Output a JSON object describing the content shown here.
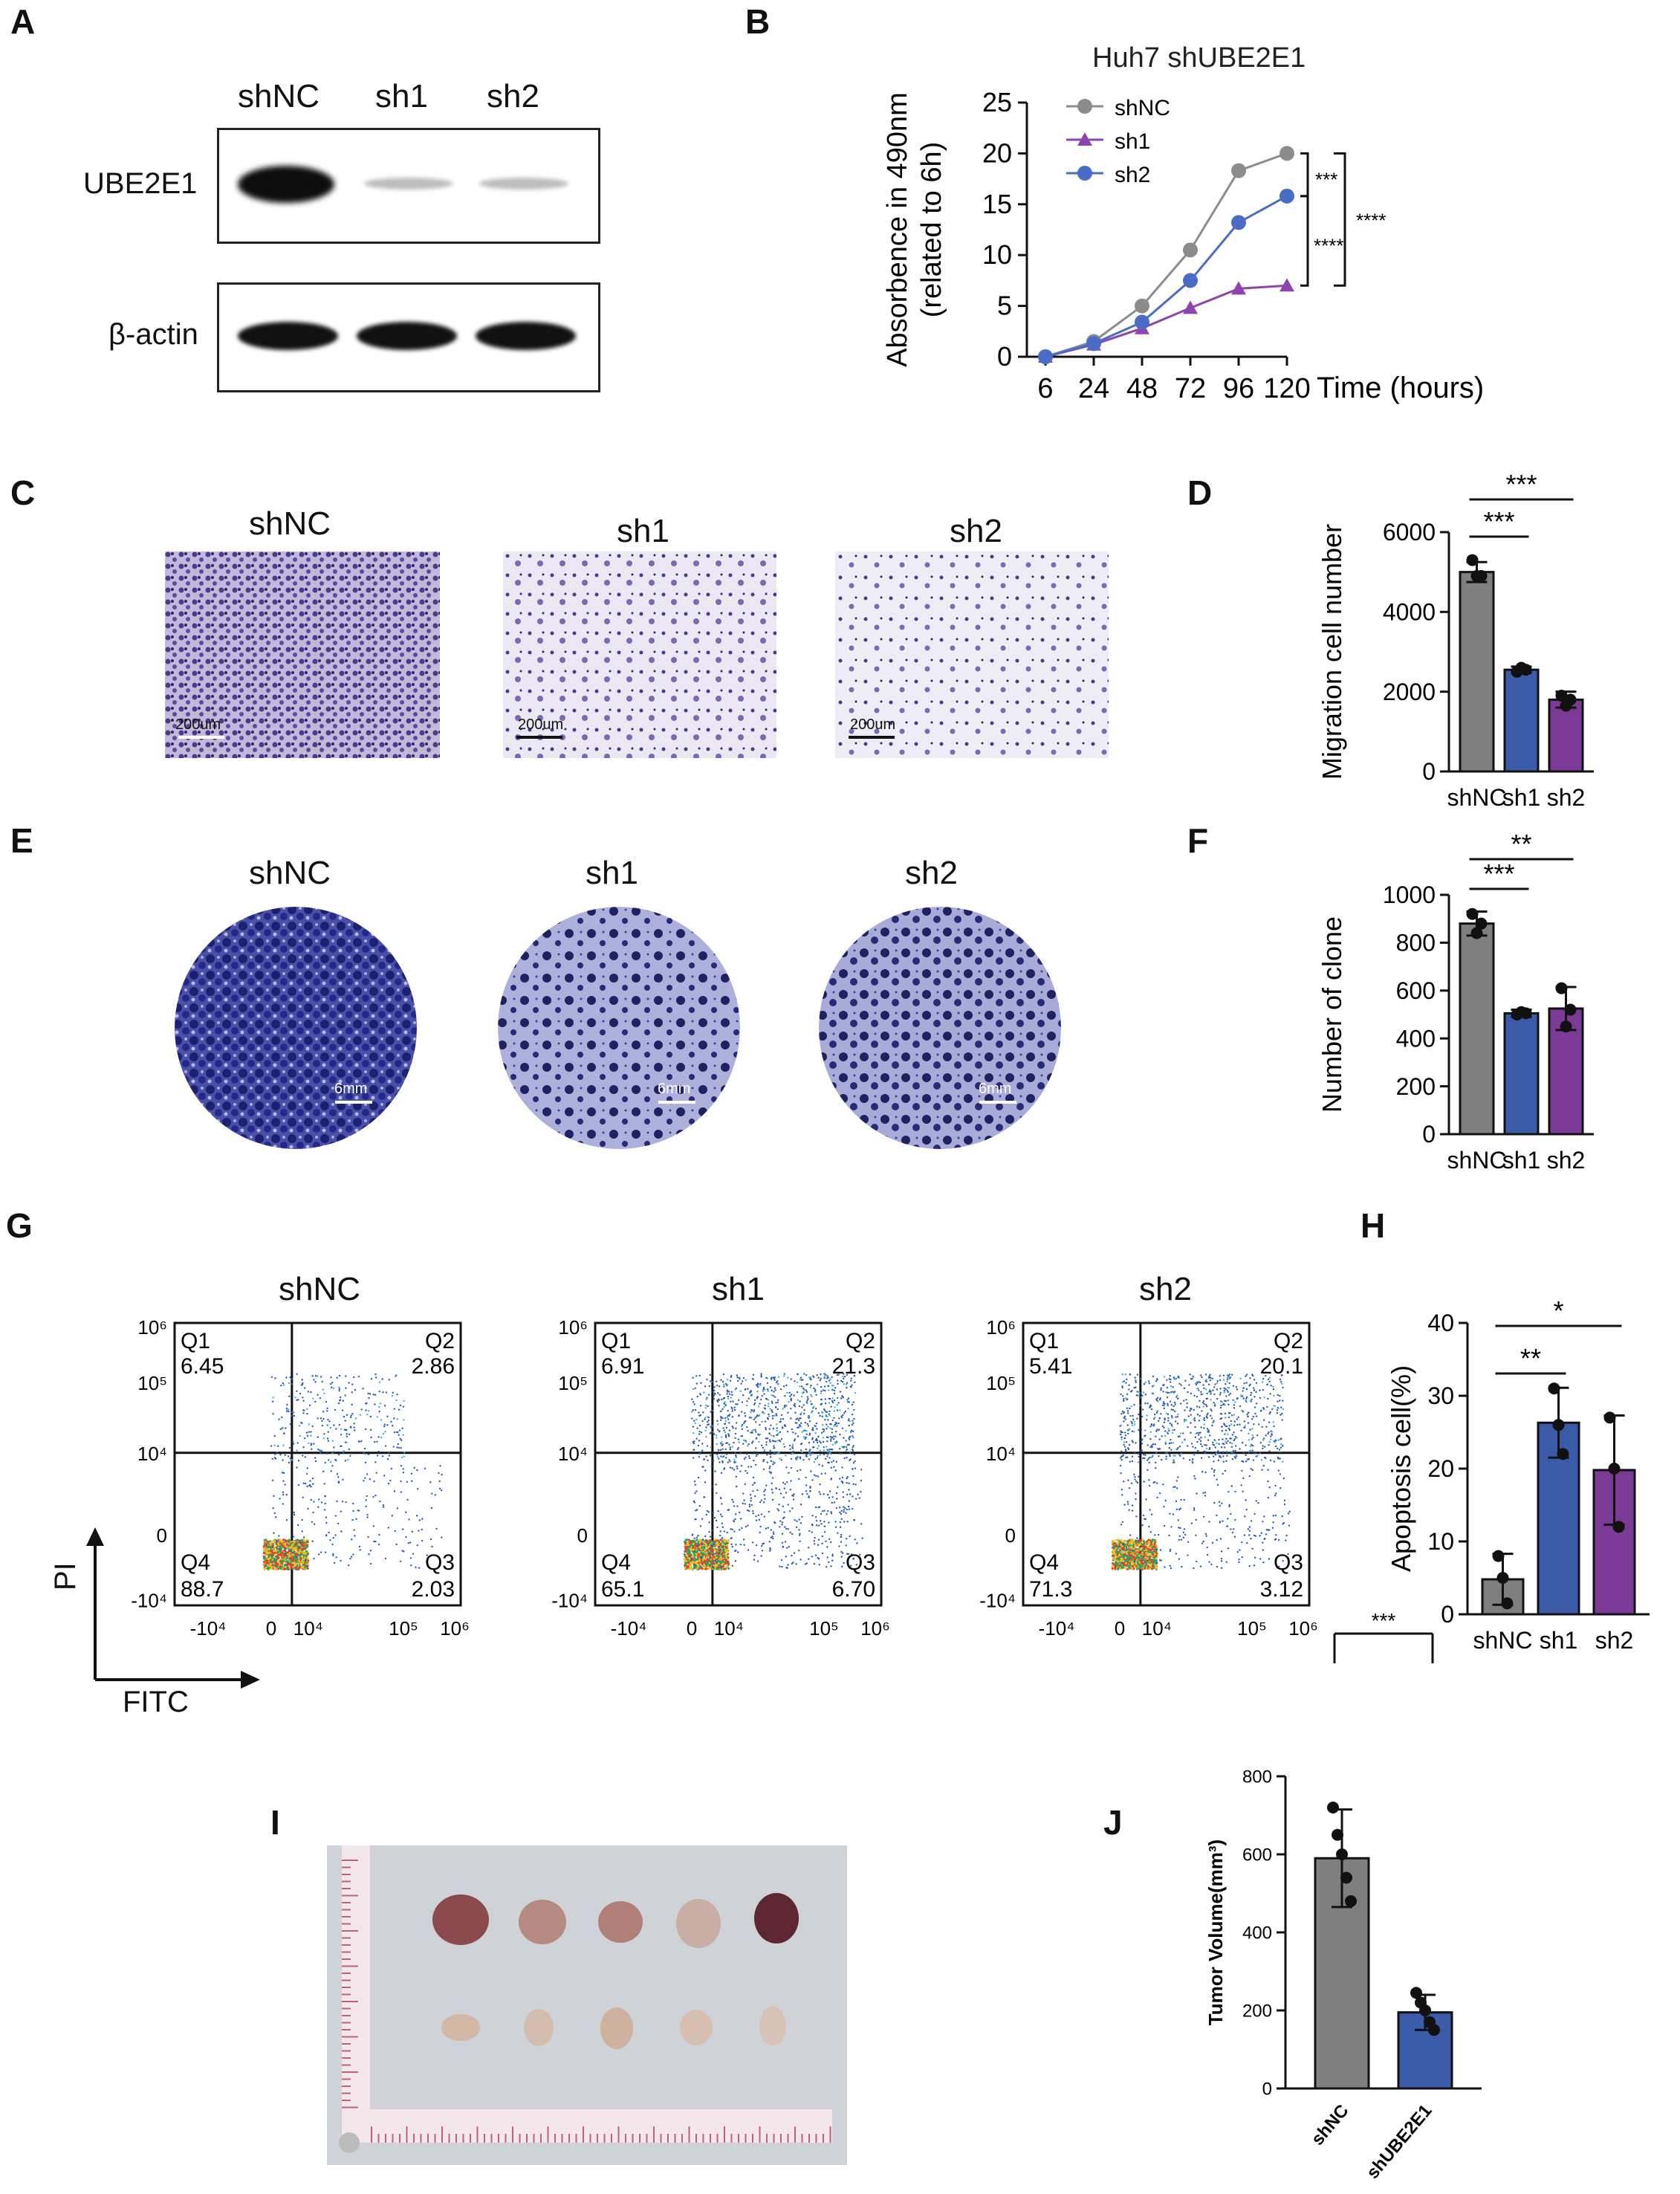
{
  "panels": {
    "A": "A",
    "B": "B",
    "C": "C",
    "D": "D",
    "E": "E",
    "F": "F",
    "G": "G",
    "H": "H",
    "I": "I",
    "J": "J"
  },
  "western": {
    "lanes": [
      "shNC",
      "sh1",
      "sh2"
    ],
    "rows": [
      "UBE2E1",
      "β-actin"
    ]
  },
  "transwell": {
    "labels": [
      "shNC",
      "sh1",
      "sh2"
    ],
    "scale": "200um"
  },
  "colony": {
    "labels": [
      "shNC",
      "sh1",
      "sh2"
    ],
    "scale": "6mm"
  },
  "flow": {
    "titles": [
      "shNC",
      "sh1",
      "sh2"
    ],
    "y_axis": "PI",
    "x_axis": "FITC",
    "quadrant_names": [
      "Q1",
      "Q2",
      "Q3",
      "Q4"
    ],
    "samples": [
      {
        "q1": "6.45",
        "q2": "2.86",
        "q3": "2.03",
        "q4": "88.7"
      },
      {
        "q1": "6.91",
        "q2": "21.3",
        "q3": "6.70",
        "q4": "65.1"
      },
      {
        "q1": "5.41",
        "q2": "20.1",
        "q3": "3.12",
        "q4": "71.3"
      }
    ],
    "yticks": [
      "10⁶",
      "10⁵",
      "10⁴",
      "0",
      "-10⁴"
    ],
    "xticks": [
      "-10⁴",
      "0",
      "10⁴",
      "10⁵",
      "10⁶"
    ]
  },
  "colors": {
    "gray": "#7f7f7f",
    "blue": "#3b5ba9",
    "purple": "#7b3a96",
    "shNC_line": "#8c8c8c",
    "sh1_line": "#8e44ad",
    "sh2_line": "#4a6bc6"
  },
  "chart_data": [
    {
      "panel": "B",
      "type": "line",
      "title": "Huh7  shUBE2E1",
      "ylabel": "Absorbence in 490nm\n(related to 6h)",
      "xlabel": "Time (hours)",
      "x": [
        "6",
        "24",
        "48",
        "72",
        "96",
        "120"
      ],
      "ylim": [
        0,
        25
      ],
      "yticks": [
        0,
        5,
        10,
        15,
        20,
        25
      ],
      "series": [
        {
          "name": "shNC",
          "values": [
            0,
            1.5,
            5.0,
            10.5,
            18.3,
            20.0
          ],
          "marker": "circle"
        },
        {
          "name": "sh1",
          "values": [
            0,
            1.2,
            2.8,
            4.8,
            6.7,
            7.0
          ],
          "marker": "triangle"
        },
        {
          "name": "sh2",
          "values": [
            0,
            1.3,
            3.4,
            7.5,
            13.2,
            15.8
          ],
          "marker": "circle"
        }
      ],
      "annotations": [
        "***",
        "****",
        "****"
      ]
    },
    {
      "panel": "D",
      "type": "bar",
      "ylabel": "Migration cell number",
      "categories": [
        "shNC",
        "sh1",
        "sh2"
      ],
      "values": [
        5000,
        2550,
        1800
      ],
      "errors": [
        250,
        80,
        200
      ],
      "points": [
        [
          5300,
          4900,
          4900
        ],
        [
          2500,
          2600,
          2550
        ],
        [
          1900,
          1650,
          1800
        ]
      ],
      "ylim": [
        0,
        6000
      ],
      "yticks": [
        0,
        2000,
        4000,
        6000
      ],
      "annotations": [
        "***",
        "***"
      ]
    },
    {
      "panel": "F",
      "type": "bar",
      "ylabel": "Number of clone",
      "categories": [
        "shNC",
        "sh1",
        "sh2"
      ],
      "values": [
        880,
        505,
        525
      ],
      "errors": [
        50,
        15,
        90
      ],
      "points": [
        [
          920,
          840,
          880
        ],
        [
          500,
          510,
          505
        ],
        [
          610,
          450,
          520
        ]
      ],
      "ylim": [
        0,
        1000
      ],
      "yticks": [
        0,
        200,
        400,
        600,
        800,
        1000
      ],
      "annotations": [
        "***",
        "**"
      ]
    },
    {
      "panel": "H",
      "type": "bar",
      "ylabel": "Apoptosis cell(%)",
      "categories": [
        "shNC",
        "sh1",
        "sh2"
      ],
      "values": [
        4.8,
        26.3,
        19.8
      ],
      "errors": [
        3.5,
        4.8,
        7.5
      ],
      "points": [
        [
          8.0,
          5.0,
          1.5
        ],
        [
          31.0,
          26.0,
          22.0
        ],
        [
          27.0,
          20.0,
          12.0
        ]
      ],
      "ylim": [
        0,
        40
      ],
      "yticks": [
        0,
        10,
        20,
        30,
        40
      ],
      "annotations": [
        "**",
        "*"
      ]
    },
    {
      "panel": "J",
      "type": "bar",
      "ylabel": "Tumor Volume(mm³)",
      "categories": [
        "shNC",
        "shUBE2E1"
      ],
      "values": [
        590,
        195
      ],
      "errors": [
        125,
        45
      ],
      "points": [
        [
          720,
          650,
          600,
          540,
          480
        ],
        [
          245,
          220,
          200,
          170,
          150
        ]
      ],
      "ylim": [
        0,
        800
      ],
      "yticks": [
        0,
        200,
        400,
        600,
        800
      ],
      "annotations": [
        "***"
      ]
    }
  ]
}
